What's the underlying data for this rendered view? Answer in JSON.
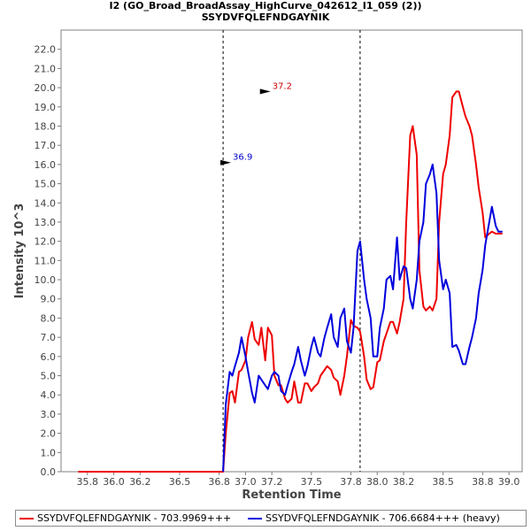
{
  "chart_data": {
    "type": "line",
    "title": "I2 (GO_Broad_BroadAssay_HighCurve_042612_I1_059 (2))",
    "subtitle": "SSYDVFQLEFNDGAYNIK",
    "xlabel": "Retention Time",
    "ylabel": "Intensity 10^3",
    "xlim": [
      35.6,
      39.1
    ],
    "ylim": [
      0,
      23.0
    ],
    "xticks": [
      "35.8",
      "36.0",
      "36.2",
      "36.5",
      "36.8",
      "37.0",
      "37.2",
      "37.5",
      "37.8",
      "38.0",
      "38.2",
      "38.5",
      "38.8",
      "39.0"
    ],
    "yticks": [
      "0.0",
      "1.0",
      "2.0",
      "3.0",
      "4.0",
      "5.0",
      "6.0",
      "7.0",
      "8.0",
      "9.0",
      "10.0",
      "11.0",
      "12.0",
      "13.0",
      "14.0",
      "15.0",
      "16.0",
      "17.0",
      "18.0",
      "19.0",
      "20.0",
      "21.0",
      "22.0"
    ],
    "vlines": [
      36.83,
      37.87
    ],
    "annotations": [
      {
        "label": "37.2",
        "x": 37.17,
        "y": 19.8,
        "color": "#cc0000"
      },
      {
        "label": "36.9",
        "x": 36.87,
        "y": 16.1,
        "color": "#0000cc"
      }
    ],
    "series": [
      {
        "name": "SSYDVFQLEFNDGAYNIK - 703.9969+++",
        "color": "#ee0000",
        "x": [
          35.73,
          36.83,
          36.85,
          36.88,
          36.9,
          36.92,
          36.95,
          36.97,
          37.0,
          37.02,
          37.05,
          37.07,
          37.1,
          37.12,
          37.15,
          37.17,
          37.2,
          37.22,
          37.25,
          37.27,
          37.3,
          37.32,
          37.35,
          37.37,
          37.4,
          37.42,
          37.45,
          37.47,
          37.5,
          37.52,
          37.55,
          37.57,
          37.6,
          37.62,
          37.65,
          37.67,
          37.7,
          37.72,
          37.75,
          37.77,
          37.8,
          37.82,
          37.85,
          37.87,
          37.9,
          37.92,
          37.95,
          37.97,
          38.0,
          38.02,
          38.05,
          38.07,
          38.1,
          38.12,
          38.15,
          38.17,
          38.2,
          38.22,
          38.25,
          38.27,
          38.3,
          38.32,
          38.35,
          38.37,
          38.4,
          38.42,
          38.45,
          38.47,
          38.5,
          38.52,
          38.55,
          38.57,
          38.6,
          38.62,
          38.65,
          38.67,
          38.7,
          38.72,
          38.75,
          38.77,
          38.8,
          38.82,
          38.85,
          38.87,
          38.9,
          38.92,
          38.95
        ],
        "values": [
          0.0,
          0.0,
          2.0,
          4.1,
          4.2,
          3.6,
          5.2,
          5.3,
          5.8,
          7.0,
          7.8,
          6.9,
          6.6,
          7.5,
          5.8,
          7.5,
          7.1,
          5.0,
          4.5,
          4.5,
          3.8,
          3.6,
          3.8,
          4.7,
          3.6,
          3.6,
          4.6,
          4.6,
          4.2,
          4.4,
          4.6,
          5.0,
          5.3,
          5.5,
          5.3,
          4.9,
          4.7,
          4.0,
          5.0,
          6.0,
          7.9,
          7.6,
          7.5,
          7.3,
          6.0,
          4.8,
          4.3,
          4.4,
          5.7,
          5.8,
          6.8,
          7.2,
          7.8,
          7.8,
          7.2,
          7.8,
          9.0,
          13.0,
          17.5,
          18.0,
          16.5,
          10.5,
          8.6,
          8.4,
          8.6,
          8.4,
          9.0,
          13.0,
          15.5,
          16.0,
          17.5,
          19.5,
          19.8,
          19.8,
          19.0,
          18.5,
          18.0,
          17.5,
          16.0,
          14.8,
          13.5,
          12.2,
          12.4,
          12.5,
          12.4,
          12.4,
          12.4
        ]
      },
      {
        "name": "SSYDVFQLEFNDGAYNIK - 706.6684+++ (heavy)",
        "color": "#0000dd",
        "x": [
          36.83,
          36.85,
          36.88,
          36.9,
          36.92,
          36.95,
          36.97,
          37.0,
          37.02,
          37.05,
          37.07,
          37.1,
          37.12,
          37.15,
          37.17,
          37.2,
          37.22,
          37.25,
          37.27,
          37.3,
          37.32,
          37.35,
          37.37,
          37.4,
          37.42,
          37.45,
          37.47,
          37.5,
          37.52,
          37.55,
          37.57,
          37.6,
          37.62,
          37.65,
          37.67,
          37.7,
          37.72,
          37.75,
          37.77,
          37.8,
          37.82,
          37.85,
          37.87,
          37.9,
          37.92,
          37.95,
          37.97,
          38.0,
          38.02,
          38.05,
          38.07,
          38.1,
          38.12,
          38.15,
          38.17,
          38.2,
          38.22,
          38.25,
          38.27,
          38.3,
          38.32,
          38.35,
          38.37,
          38.4,
          38.42,
          38.45,
          38.47,
          38.5,
          38.52,
          38.55,
          38.57,
          38.6,
          38.62,
          38.65,
          38.67,
          38.7,
          38.72,
          38.75,
          38.77,
          38.8,
          38.82,
          38.85,
          38.87,
          38.9,
          38.92,
          38.95
        ],
        "values": [
          0.0,
          3.5,
          5.2,
          5.0,
          5.5,
          6.2,
          7.0,
          6.0,
          5.2,
          4.1,
          3.6,
          5.0,
          4.8,
          4.5,
          4.3,
          5.0,
          5.2,
          5.0,
          4.2,
          4.0,
          4.5,
          5.2,
          5.6,
          6.5,
          5.8,
          5.0,
          5.5,
          6.5,
          7.0,
          6.2,
          6.0,
          7.0,
          7.5,
          8.2,
          7.0,
          6.5,
          8.0,
          8.5,
          6.8,
          6.2,
          7.5,
          11.5,
          12.0,
          10.0,
          9.0,
          8.0,
          6.0,
          6.0,
          7.5,
          8.5,
          10.0,
          10.2,
          9.5,
          12.2,
          10.0,
          10.7,
          10.6,
          9.0,
          8.5,
          10.0,
          12.0,
          13.0,
          15.0,
          15.5,
          16.0,
          14.5,
          11.0,
          9.5,
          10.0,
          9.3,
          6.5,
          6.6,
          6.3,
          5.6,
          5.6,
          6.5,
          7.0,
          8.0,
          9.3,
          10.5,
          11.8,
          13.0,
          13.8,
          12.8,
          12.5,
          12.5
        ]
      }
    ],
    "legend": "bottom"
  }
}
